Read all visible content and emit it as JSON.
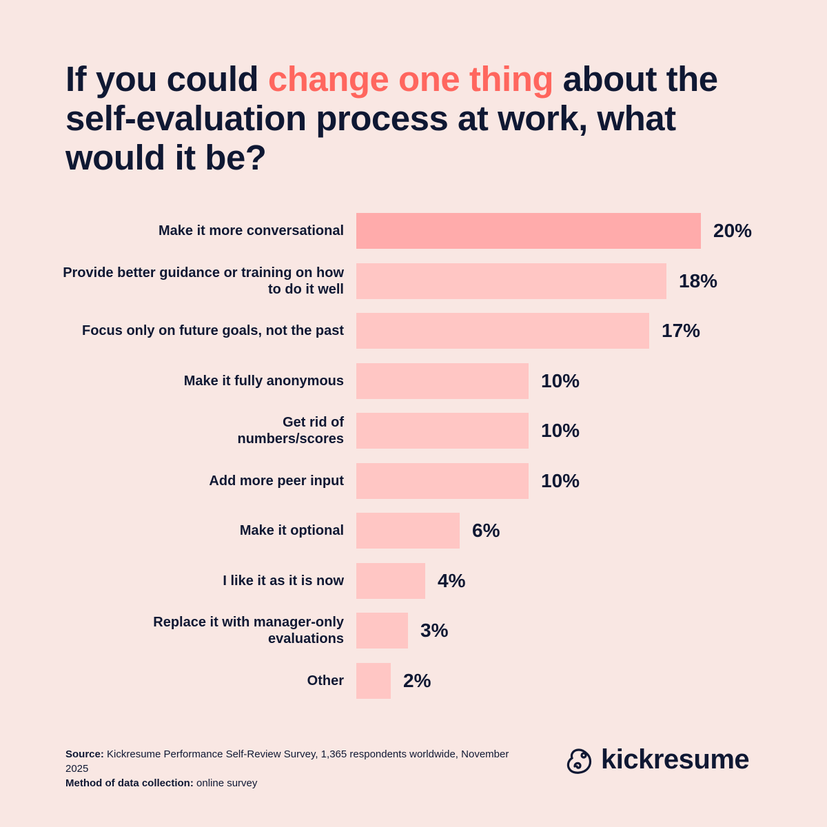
{
  "title": {
    "before": "If you could ",
    "highlight": "change one thing",
    "after": " about the self-evaluation process at work, what would it be?"
  },
  "colors": {
    "highlight": "#ff665e",
    "top_bar": "#ffabab",
    "bar": "#ffc6c4",
    "text": "#0f1833",
    "background": "#f9e7e3"
  },
  "chart_data": {
    "type": "bar",
    "orientation": "horizontal",
    "categories": [
      "Make it more conversational",
      "Provide better guidance or training on how to do it well",
      "Focus only on future goals, not the past",
      "Make it fully anonymous",
      "Get rid of numbers/scores",
      "Add more peer input",
      "Make it optional",
      "I like it as it is now",
      "Replace it with manager-only evaluations",
      "Other"
    ],
    "values": [
      20,
      18,
      17,
      10,
      10,
      10,
      6,
      4,
      3,
      2
    ],
    "data_labels": [
      "20%",
      "18%",
      "17%",
      "10%",
      "10%",
      "10%",
      "6%",
      "4%",
      "3%",
      "2%"
    ],
    "unit": "%",
    "grid": false
  },
  "footer": {
    "source_label": "Source:",
    "source_text": " Kickresume Performance Self-Review Survey, 1,365 respondents worldwide, November 2025",
    "method_label": "Method of data collection:",
    "method_text": " online survey"
  },
  "logo": {
    "text": "kickresume",
    "icon": "chameleon-logo-icon"
  }
}
